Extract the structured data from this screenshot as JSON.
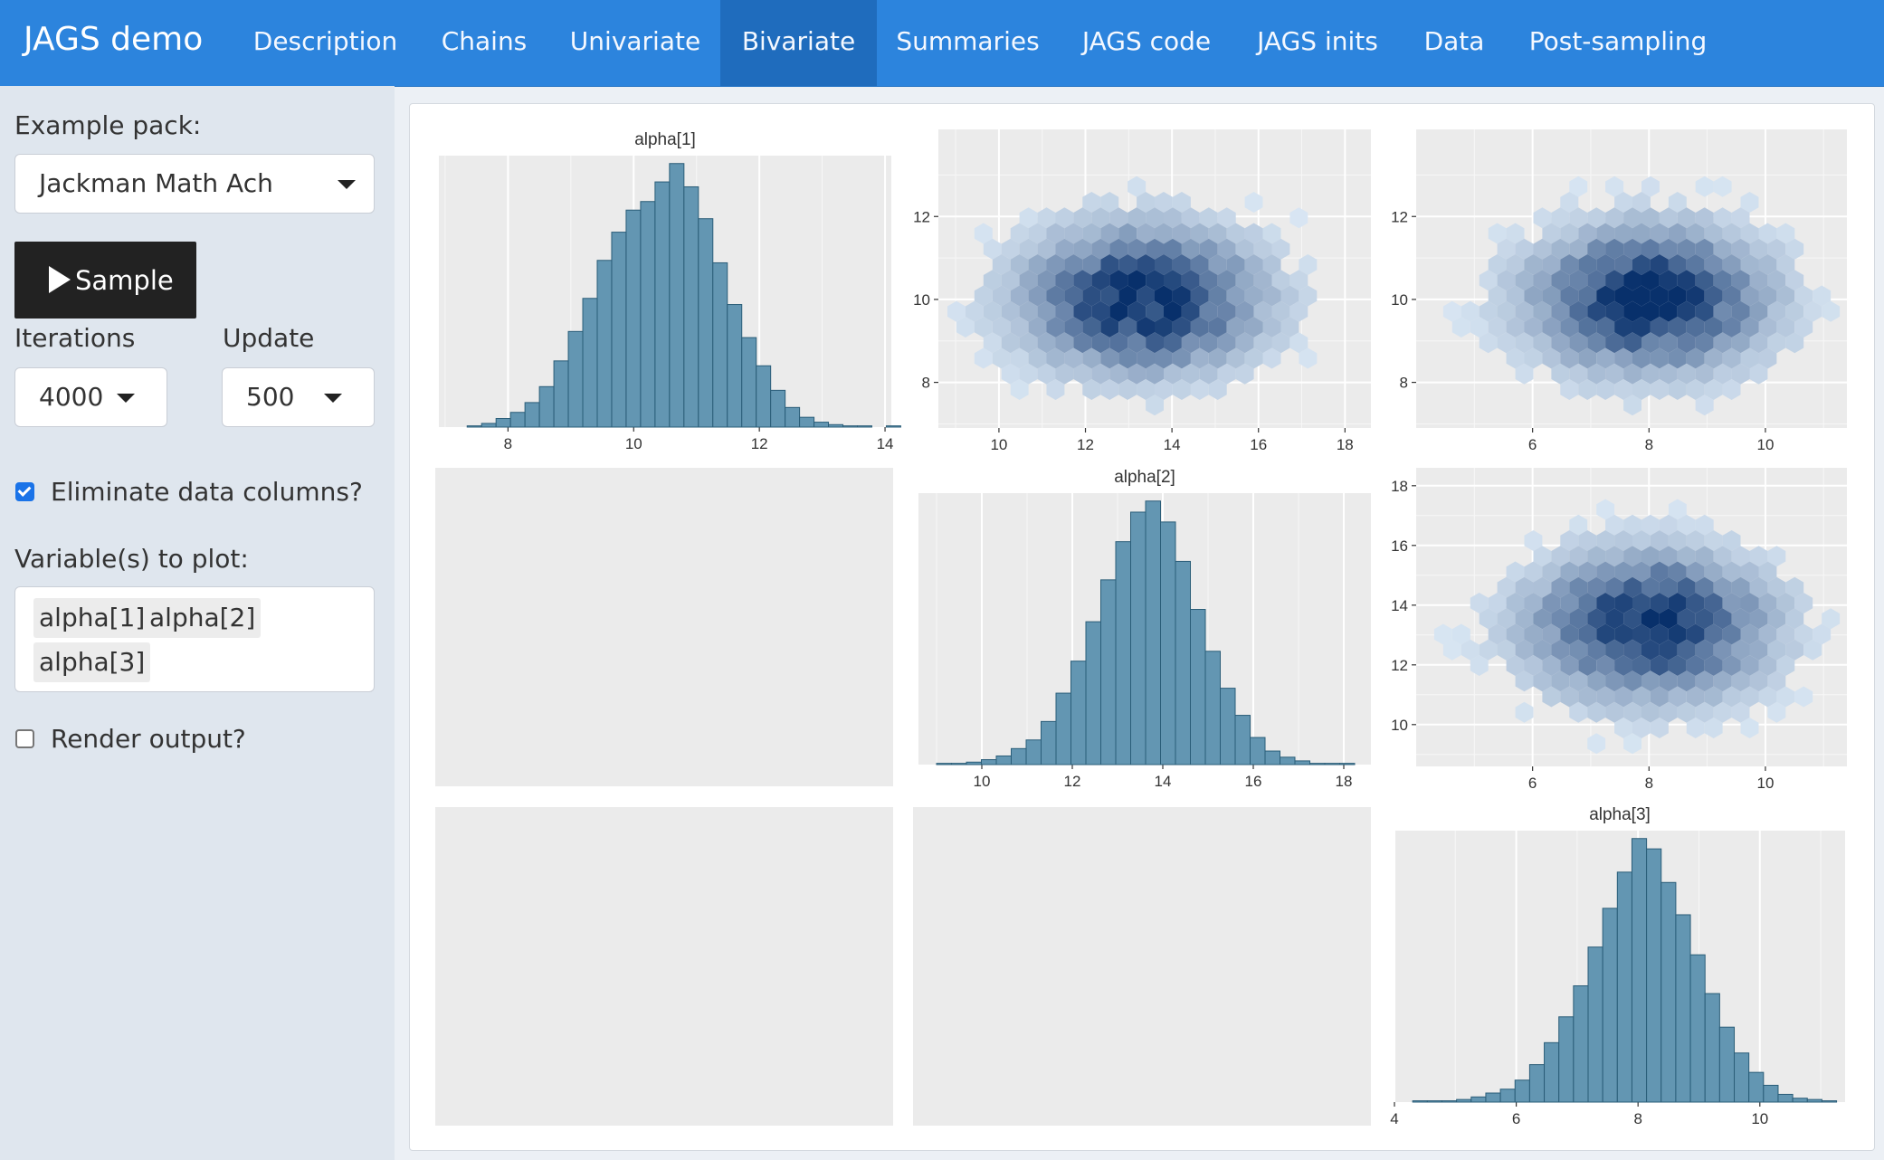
{
  "navbar": {
    "brand": "JAGS demo",
    "tabs": [
      {
        "label": "Description"
      },
      {
        "label": "Chains"
      },
      {
        "label": "Univariate"
      },
      {
        "label": "Bivariate",
        "active": true
      },
      {
        "label": "Summaries"
      },
      {
        "label": "JAGS code"
      },
      {
        "label": "JAGS inits"
      },
      {
        "label": "Data"
      },
      {
        "label": "Post-sampling"
      }
    ]
  },
  "sidebar": {
    "example_pack_label": "Example pack:",
    "example_pack_value": "Jackman Math Ach",
    "sample_button": "Sample",
    "iterations_label": "Iterations",
    "iterations_value": "4000",
    "update_label": "Update",
    "update_value": "500",
    "eliminate_label": "Eliminate data columns?",
    "eliminate_checked": true,
    "variables_label": "Variable(s) to plot:",
    "variables": [
      "alpha[1]",
      "alpha[2]",
      "alpha[3]"
    ],
    "render_label": "Render output?",
    "render_checked": false
  },
  "colors": {
    "navbar": "#2c84dd",
    "navbar_active": "#1f6cbd",
    "histogram_fill": "#6396b2",
    "histogram_stroke": "#2a5d78",
    "hex_dark": "#08306b",
    "hex_light": "#deebf7",
    "panel_background": "#ebebeb"
  },
  "chart_data": [
    {
      "type": "bar",
      "panel": "1-1",
      "title": "alpha[1]",
      "x_ticks": [
        8,
        10,
        12,
        14
      ],
      "xlim": [
        6.9,
        14.1
      ],
      "bin_start": 7.35,
      "bin_width": 0.23,
      "values": [
        1,
        3,
        7,
        12,
        20,
        33,
        54,
        78,
        105,
        136,
        159,
        177,
        184,
        200,
        215,
        196,
        170,
        134,
        100,
        73,
        50,
        30,
        16,
        8,
        4,
        2,
        1,
        1,
        0,
        1
      ]
    },
    {
      "type": "heatmap",
      "subtype": "hexbin",
      "panel": "1-2",
      "x_ticks": [
        10,
        12,
        14,
        16,
        18
      ],
      "y_ticks": [
        8,
        10,
        12
      ],
      "xlim": [
        8.6,
        18.6
      ],
      "ylim": [
        6.9,
        14.1
      ],
      "center": [
        13.3,
        10.0
      ]
    },
    {
      "type": "heatmap",
      "subtype": "hexbin",
      "panel": "1-3",
      "x_ticks": [
        6,
        8,
        10
      ],
      "y_ticks": [
        8,
        10,
        12
      ],
      "xlim": [
        4.0,
        11.4
      ],
      "ylim": [
        6.9,
        14.1
      ],
      "center": [
        8.0,
        10.0
      ]
    },
    {
      "type": "bar",
      "panel": "2-2",
      "title": "alpha[2]",
      "x_ticks": [
        10,
        12,
        14,
        16,
        18
      ],
      "xlim": [
        8.6,
        18.6
      ],
      "bin_start": 9.0,
      "bin_width": 0.33,
      "values": [
        1,
        1,
        2,
        4,
        7,
        13,
        20,
        35,
        58,
        84,
        116,
        150,
        181,
        205,
        214,
        197,
        165,
        126,
        92,
        62,
        40,
        22,
        11,
        6,
        3,
        1,
        1,
        1
      ]
    },
    {
      "type": "heatmap",
      "subtype": "hexbin",
      "panel": "2-3",
      "x_ticks": [
        6,
        8,
        10
      ],
      "y_ticks": [
        10,
        12,
        14,
        16,
        18
      ],
      "xlim": [
        4.0,
        11.4
      ],
      "ylim": [
        8.6,
        18.6
      ],
      "center": [
        8.0,
        13.3
      ]
    },
    {
      "type": "bar",
      "panel": "3-3",
      "title": "alpha[3]",
      "x_ticks": [
        4,
        6,
        8,
        10
      ],
      "xlim": [
        4.0,
        11.4
      ],
      "bin_start": 4.3,
      "bin_width": 0.24,
      "values": [
        1,
        1,
        1,
        2,
        4,
        7,
        10,
        17,
        29,
        46,
        66,
        90,
        120,
        150,
        178,
        204,
        196,
        170,
        145,
        114,
        84,
        58,
        38,
        23,
        13,
        6,
        3,
        2,
        1
      ]
    }
  ]
}
